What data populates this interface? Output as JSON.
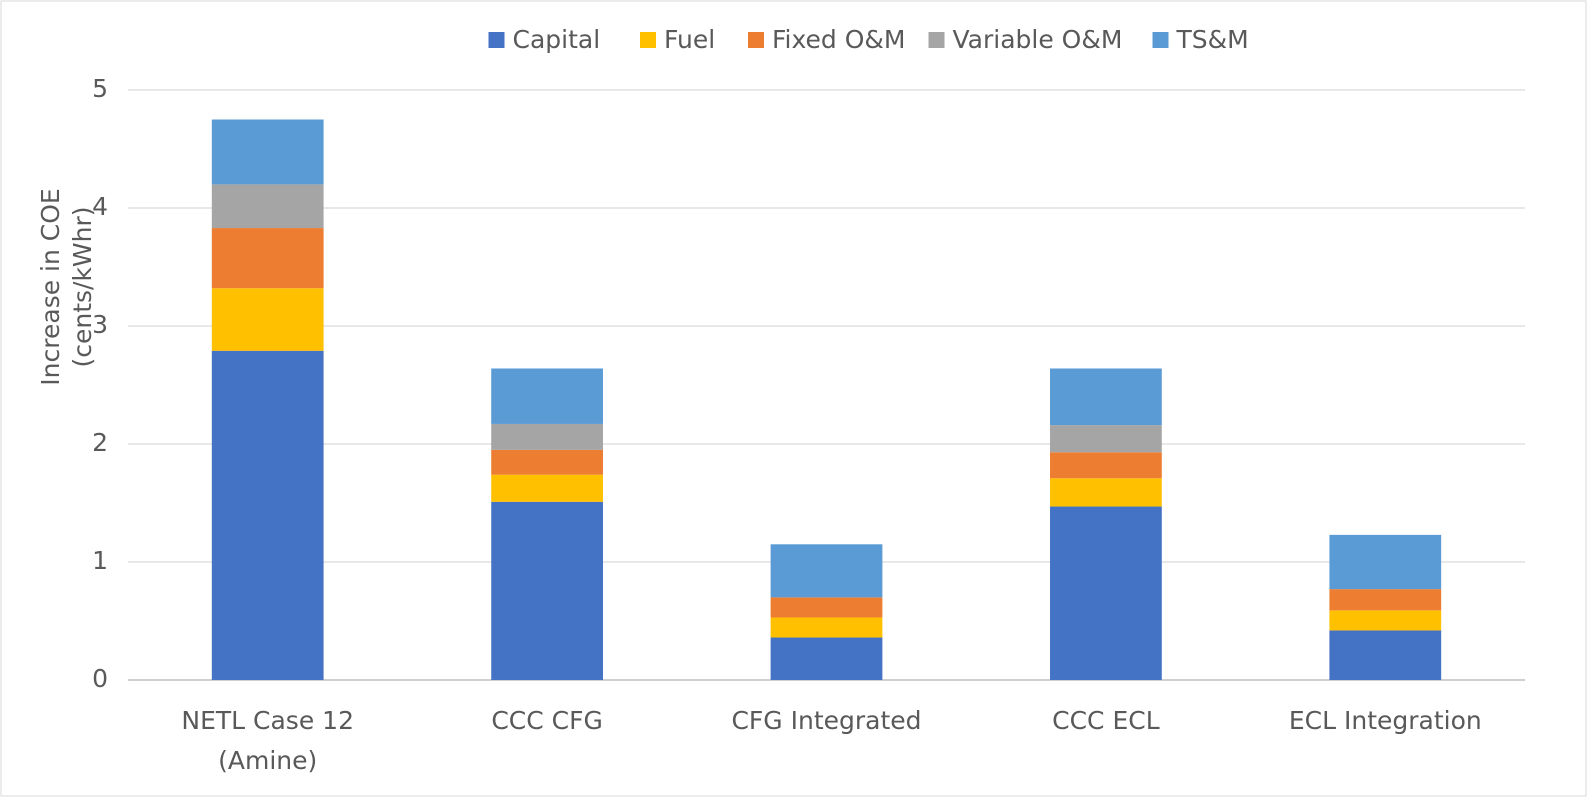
{
  "chart_data": {
    "type": "stacked_bar",
    "y_label": [
      "Increase in COE",
      "(cents/kWhr)"
    ],
    "categories": [
      "NETL Case 12\n(Amine)",
      "CCC CFG",
      "CFG Integrated",
      "CCC ECL",
      "ECL Integration"
    ],
    "series": [
      {
        "name": "Capital",
        "color": "#4472c4",
        "values": [
          2.79,
          1.51,
          0.36,
          1.47,
          0.42
        ]
      },
      {
        "name": "Fuel",
        "color": "#ffc000",
        "values": [
          0.53,
          0.23,
          0.17,
          0.24,
          0.17
        ]
      },
      {
        "name": "Fixed O&M",
        "color": "#ed7d31",
        "values": [
          0.51,
          0.21,
          0.17,
          0.22,
          0.18
        ]
      },
      {
        "name": "Variable O&M",
        "color": "#a5a5a5",
        "values": [
          0.37,
          0.22,
          0,
          0.23,
          0
        ]
      },
      {
        "name": "TS&M",
        "color": "#5b9bd5",
        "values": [
          0.55,
          0.47,
          0.45,
          0.48,
          0.46
        ]
      }
    ],
    "ylim": [
      0,
      5
    ],
    "yticks": [
      0,
      1,
      2,
      3,
      4,
      5
    ],
    "grid": true,
    "legend": "top"
  }
}
